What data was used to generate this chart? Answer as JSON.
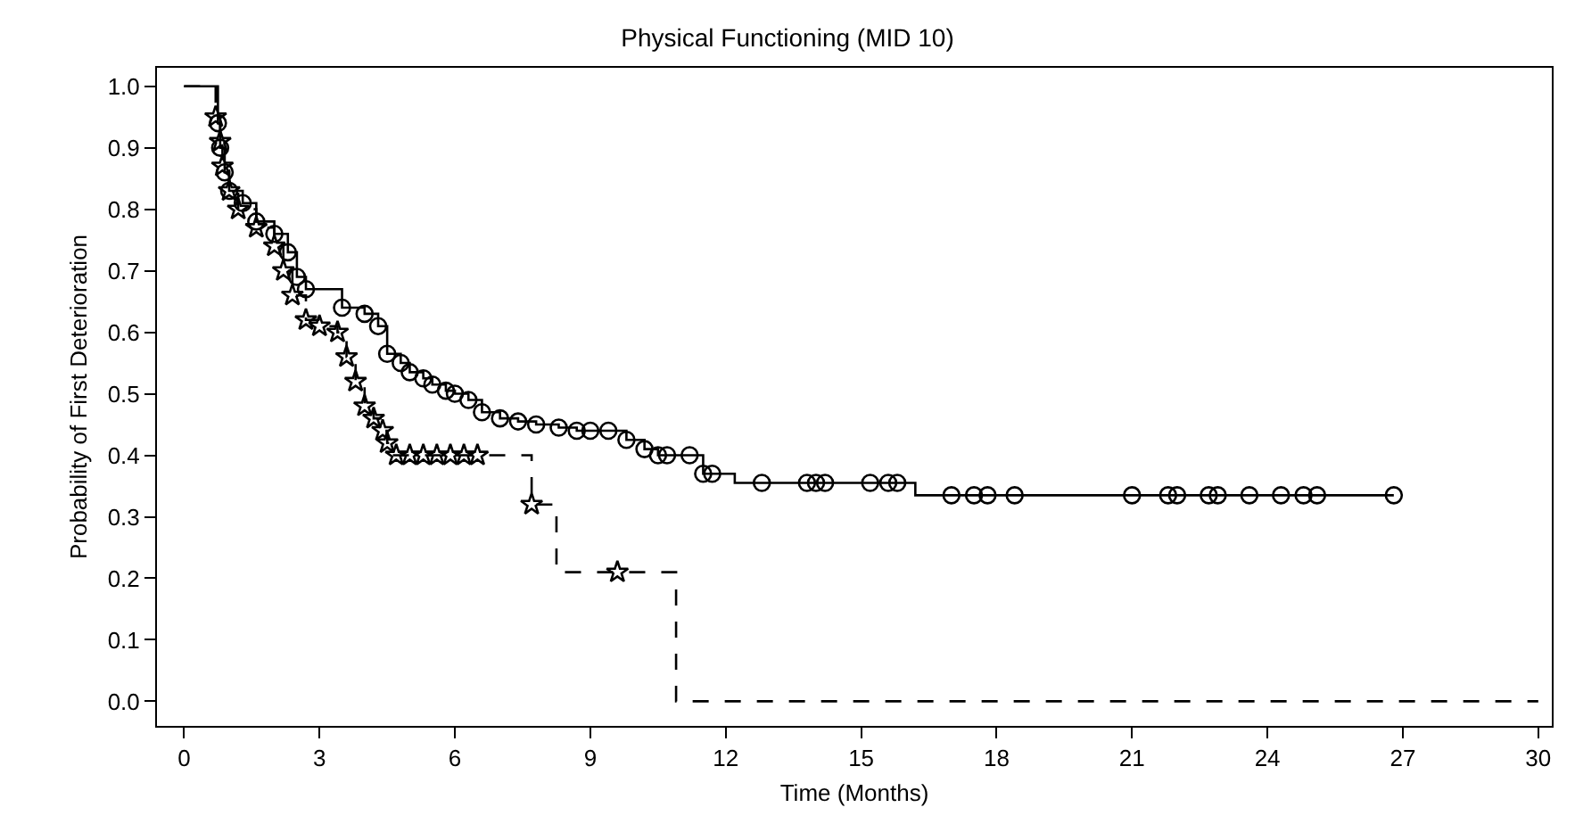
{
  "chart_data": {
    "type": "step",
    "title": "Physical Functioning (MID 10)",
    "xlabel": "Time (Months)",
    "ylabel": "Probability of First Deterioration",
    "xlim": [
      -0.6,
      30.3
    ],
    "xticks": [
      0,
      3,
      6,
      9,
      12,
      15,
      18,
      21,
      24,
      27,
      30
    ],
    "ylim": [
      -0.04,
      1.03
    ],
    "yticks": [
      {
        "value": 0,
        "label": "0.0"
      },
      0.1,
      0.2,
      0.3,
      0.4,
      0.5,
      0.6,
      0.7,
      0.8,
      0.9,
      {
        "value": 1,
        "label": "1.0"
      }
    ],
    "grid": false,
    "series": [
      {
        "color": "#000000",
        "line_style": "solid",
        "marker": "none",
        "x": [
          0,
          0.6,
          0.75,
          0.8,
          0.9,
          1.0,
          1.3,
          1.6,
          2.0,
          2.3,
          2.5,
          2.7,
          3.5,
          4.0,
          4.3,
          4.5,
          4.8,
          5.0,
          5.3,
          5.5,
          5.8,
          6.0,
          6.3,
          6.6,
          7.0,
          7.4,
          7.8,
          8.3,
          8.7,
          9.8,
          10.2,
          10.5,
          11.5,
          12.2,
          16.2,
          26.8
        ],
        "values": [
          1.0,
          1.0,
          0.94,
          0.9,
          0.86,
          0.83,
          0.81,
          0.78,
          0.76,
          0.73,
          0.69,
          0.67,
          0.64,
          0.63,
          0.61,
          0.565,
          0.55,
          0.535,
          0.525,
          0.515,
          0.505,
          0.5,
          0.49,
          0.47,
          0.46,
          0.455,
          0.45,
          0.445,
          0.44,
          0.425,
          0.41,
          0.4,
          0.37,
          0.355,
          0.335,
          0.335
        ]
      },
      {
        "color": "#000000",
        "line_style": "dashed",
        "marker": "none",
        "x": [
          0,
          0.7,
          0.8,
          0.85,
          1.0,
          1.2,
          1.6,
          2.0,
          2.2,
          2.4,
          2.7,
          3.0,
          3.4,
          3.6,
          3.8,
          4.0,
          4.2,
          4.4,
          4.5,
          4.6,
          7.7,
          8.25,
          10.9,
          30
        ],
        "values": [
          1.0,
          0.95,
          0.91,
          0.87,
          0.83,
          0.8,
          0.77,
          0.74,
          0.7,
          0.66,
          0.62,
          0.61,
          0.6,
          0.56,
          0.52,
          0.48,
          0.46,
          0.44,
          0.42,
          0.4,
          0.32,
          0.21,
          0,
          0
        ]
      },
      {
        "type": "scatter",
        "color": "#000000",
        "marker": "circle",
        "x": [
          0.75,
          0.8,
          0.9,
          1.0,
          1.3,
          1.6,
          2.0,
          2.3,
          2.5,
          2.7,
          3.5,
          4.0,
          4.3,
          4.5,
          4.8,
          5.0,
          5.3,
          5.5,
          5.8,
          6.0,
          6.3,
          6.6,
          7.0,
          7.4,
          7.8,
          8.3,
          8.7,
          9.0,
          9.4,
          9.8,
          10.2,
          10.5,
          10.7,
          11.2,
          11.5,
          11.7,
          12.8,
          13.8,
          14.0,
          14.2,
          15.2,
          15.6,
          15.8,
          17.0,
          17.5,
          17.8,
          18.4,
          21.0,
          21.8,
          22.0,
          22.7,
          22.9,
          23.6,
          24.3,
          24.8,
          25.1,
          26.8
        ],
        "values": [
          0.94,
          0.9,
          0.86,
          0.83,
          0.81,
          0.78,
          0.76,
          0.73,
          0.69,
          0.67,
          0.64,
          0.63,
          0.61,
          0.565,
          0.55,
          0.535,
          0.525,
          0.515,
          0.505,
          0.5,
          0.49,
          0.47,
          0.46,
          0.455,
          0.45,
          0.445,
          0.44,
          0.44,
          0.44,
          0.425,
          0.41,
          0.4,
          0.4,
          0.4,
          0.37,
          0.37,
          0.355,
          0.355,
          0.355,
          0.355,
          0.355,
          0.355,
          0.355,
          0.335,
          0.335,
          0.335,
          0.335,
          0.335,
          0.335,
          0.335,
          0.335,
          0.335,
          0.335,
          0.335,
          0.335,
          0.335,
          0.335
        ]
      },
      {
        "type": "scatter",
        "color": "#000000",
        "marker": "star",
        "x": [
          0.7,
          0.8,
          0.85,
          1.0,
          1.2,
          1.6,
          2.0,
          2.2,
          2.4,
          2.7,
          3.0,
          3.4,
          3.6,
          3.8,
          4.0,
          4.2,
          4.4,
          4.5,
          4.7,
          5.0,
          5.3,
          5.6,
          5.9,
          6.2,
          6.5,
          7.7,
          9.6
        ],
        "values": [
          0.95,
          0.91,
          0.87,
          0.83,
          0.8,
          0.77,
          0.74,
          0.7,
          0.66,
          0.62,
          0.61,
          0.6,
          0.56,
          0.52,
          0.48,
          0.46,
          0.44,
          0.42,
          0.4,
          0.4,
          0.4,
          0.4,
          0.4,
          0.4,
          0.4,
          0.32,
          0.21
        ]
      }
    ]
  }
}
